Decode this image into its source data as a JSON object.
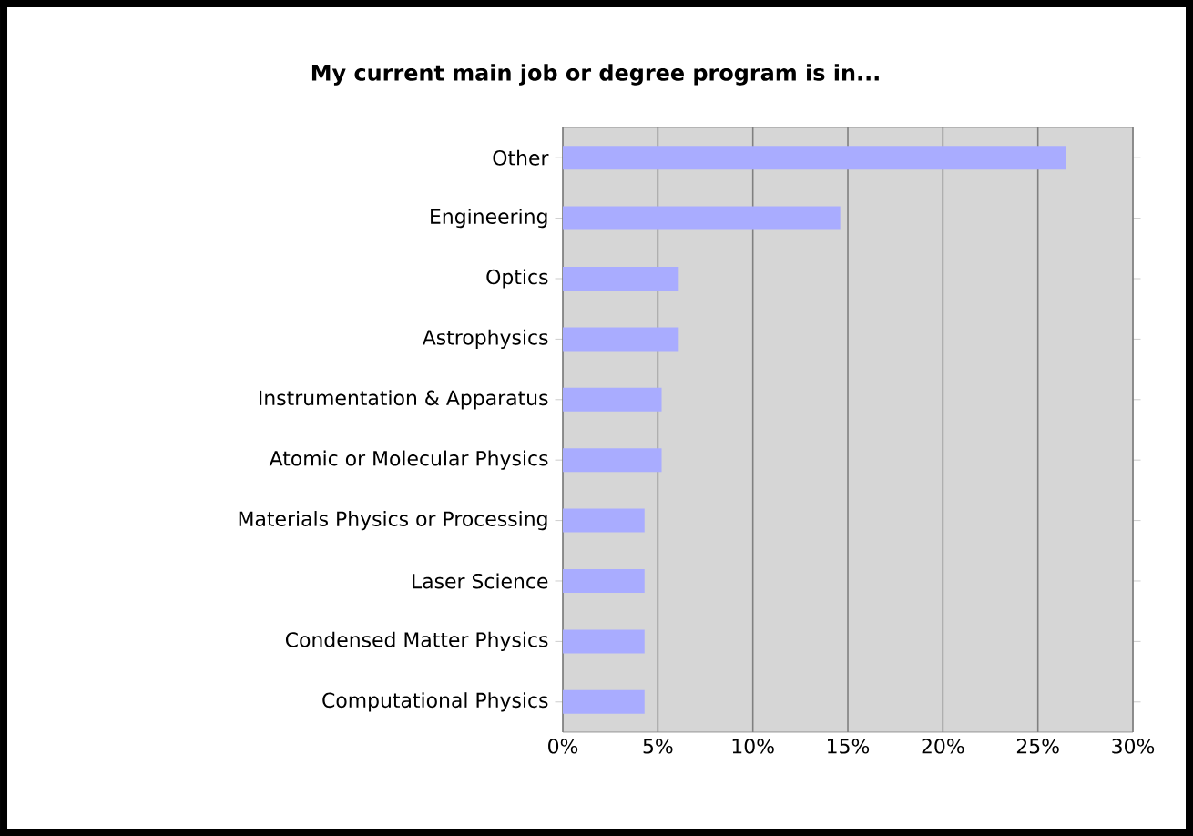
{
  "chart_data": {
    "type": "bar",
    "orientation": "horizontal",
    "title": "My current main job or degree program is in...",
    "categories": [
      "Other",
      "Engineering",
      "Optics",
      "Astrophysics",
      "Instrumentation & Apparatus",
      "Atomic or Molecular Physics",
      "Materials Physics or Processing",
      "Laser Science",
      "Condensed Matter Physics",
      "Computational Physics"
    ],
    "values": [
      26.5,
      14.6,
      6.1,
      6.1,
      5.2,
      5.2,
      4.3,
      4.3,
      4.3,
      4.3
    ],
    "color": "#a9acff",
    "xlim": [
      0,
      30
    ],
    "xticks": [
      {
        "value": 0,
        "label": "0%"
      },
      {
        "value": 5,
        "label": "5%"
      },
      {
        "value": 10,
        "label": "10%"
      },
      {
        "value": 15,
        "label": "15%"
      },
      {
        "value": 20,
        "label": "20%"
      },
      {
        "value": 25,
        "label": "25%"
      },
      {
        "value": 30,
        "label": "30%"
      }
    ],
    "grid": "x"
  }
}
